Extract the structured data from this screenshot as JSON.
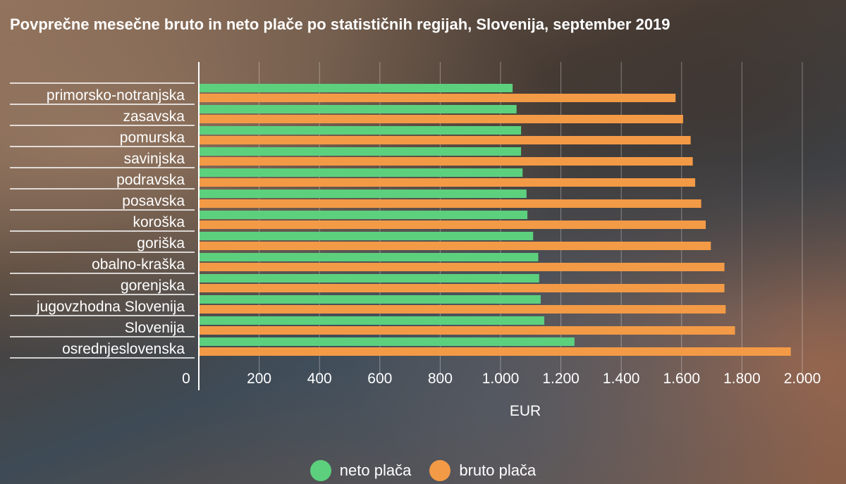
{
  "chart_data": {
    "type": "bar",
    "orientation": "horizontal",
    "title": "Povprečne mesečne bruto in neto plače po statističnih regijah, Slovenija, september 2019",
    "xlabel": "EUR",
    "ylabel": "",
    "xlim": [
      0,
      2000
    ],
    "grid": true,
    "legend_position": "bottom",
    "categories": [
      "primorsko-notranjska",
      "zasavska",
      "pomurska",
      "savinjska",
      "podravska",
      "posavska",
      "koroška",
      "goriška",
      "obalno-kraška",
      "gorenjska",
      "jugovzhodna Slovenija",
      "Slovenija",
      "osrednjeslovenska"
    ],
    "x_ticks": [
      0,
      200,
      400,
      600,
      800,
      1000,
      1200,
      1400,
      1600,
      1800,
      2000
    ],
    "x_tick_labels": [
      "0",
      "200",
      "400",
      "600",
      "800",
      "1.000",
      "1.200",
      "1.400",
      "1.600",
      "1.800",
      "2.000"
    ],
    "series": [
      {
        "name": "neto plača",
        "color": "#5dd07e",
        "values": [
          1040,
          1053,
          1068,
          1068,
          1073,
          1086,
          1089,
          1108,
          1125,
          1128,
          1133,
          1145,
          1245
        ]
      },
      {
        "name": "bruto plača",
        "color": "#f39a46",
        "values": [
          1580,
          1605,
          1630,
          1637,
          1645,
          1665,
          1680,
          1697,
          1742,
          1742,
          1746,
          1777,
          1962
        ]
      }
    ]
  }
}
